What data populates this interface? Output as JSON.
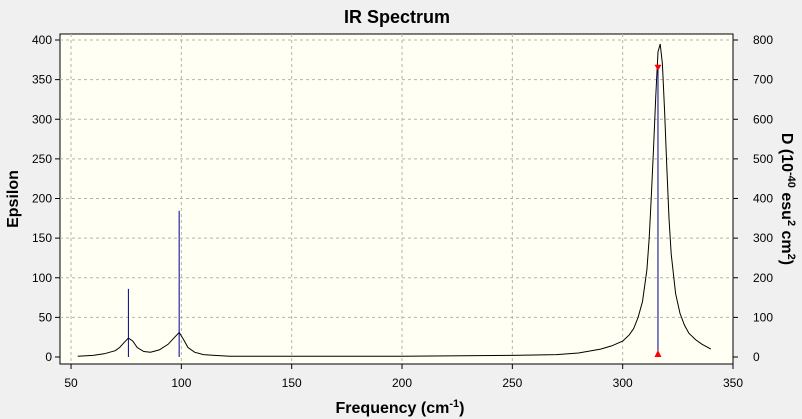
{
  "chart_data": {
    "type": "line",
    "title": "IR Spectrum",
    "xlabel": {
      "main": "Frequency (cm",
      "sup": "-1",
      "tail": ")"
    },
    "ylabel_left": "Epsilon",
    "ylabel_right": {
      "p1": "D (10",
      "s1": "-40",
      "p2": " esu",
      "s2": "2",
      "p3": " cm",
      "s3": "2",
      "p4": ")"
    },
    "xlim": [
      45,
      350
    ],
    "ylim_left": [
      0,
      400
    ],
    "ylim_right": [
      0,
      800
    ],
    "x_ticks": [
      50,
      100,
      150,
      200,
      250,
      300,
      350
    ],
    "y_ticks_left": [
      0,
      50,
      100,
      150,
      200,
      250,
      300,
      350,
      400
    ],
    "y_ticks_right": [
      0,
      100,
      200,
      300,
      400,
      500,
      600,
      700,
      800
    ],
    "grid": true,
    "colors": {
      "plot_background": "#fffff4",
      "spectrum": "#000000",
      "stick": "#00008b",
      "marker": "#ff0000",
      "grid": "#b4b4b4"
    },
    "spectrum": {
      "name": "Epsilon",
      "x": [
        53,
        60,
        65,
        70,
        72,
        74,
        76,
        78,
        80,
        83,
        86,
        90,
        94,
        97,
        99,
        101,
        103,
        106,
        110,
        115,
        122,
        140,
        200,
        250,
        270,
        280,
        290,
        295,
        300,
        303,
        305,
        307,
        309,
        311,
        312,
        313,
        314,
        315,
        316,
        317,
        318,
        319,
        320,
        321,
        322,
        324,
        326,
        328,
        330,
        333,
        336,
        340
      ],
      "y": [
        1,
        2,
        4,
        8,
        12,
        18,
        24,
        20,
        12,
        7,
        6,
        9,
        16,
        25,
        31,
        22,
        12,
        6,
        3,
        2,
        1,
        1,
        1,
        2,
        3,
        5,
        10,
        14,
        20,
        28,
        36,
        50,
        70,
        110,
        150,
        205,
        265,
        330,
        385,
        395,
        370,
        310,
        240,
        175,
        130,
        80,
        55,
        40,
        30,
        22,
        16,
        10
      ]
    },
    "sticks": {
      "name": "D",
      "x": [
        76,
        99,
        316
      ],
      "y": [
        172,
        369,
        730
      ]
    },
    "markers": {
      "x": [
        316,
        316
      ],
      "y": [
        730,
        0
      ]
    }
  }
}
